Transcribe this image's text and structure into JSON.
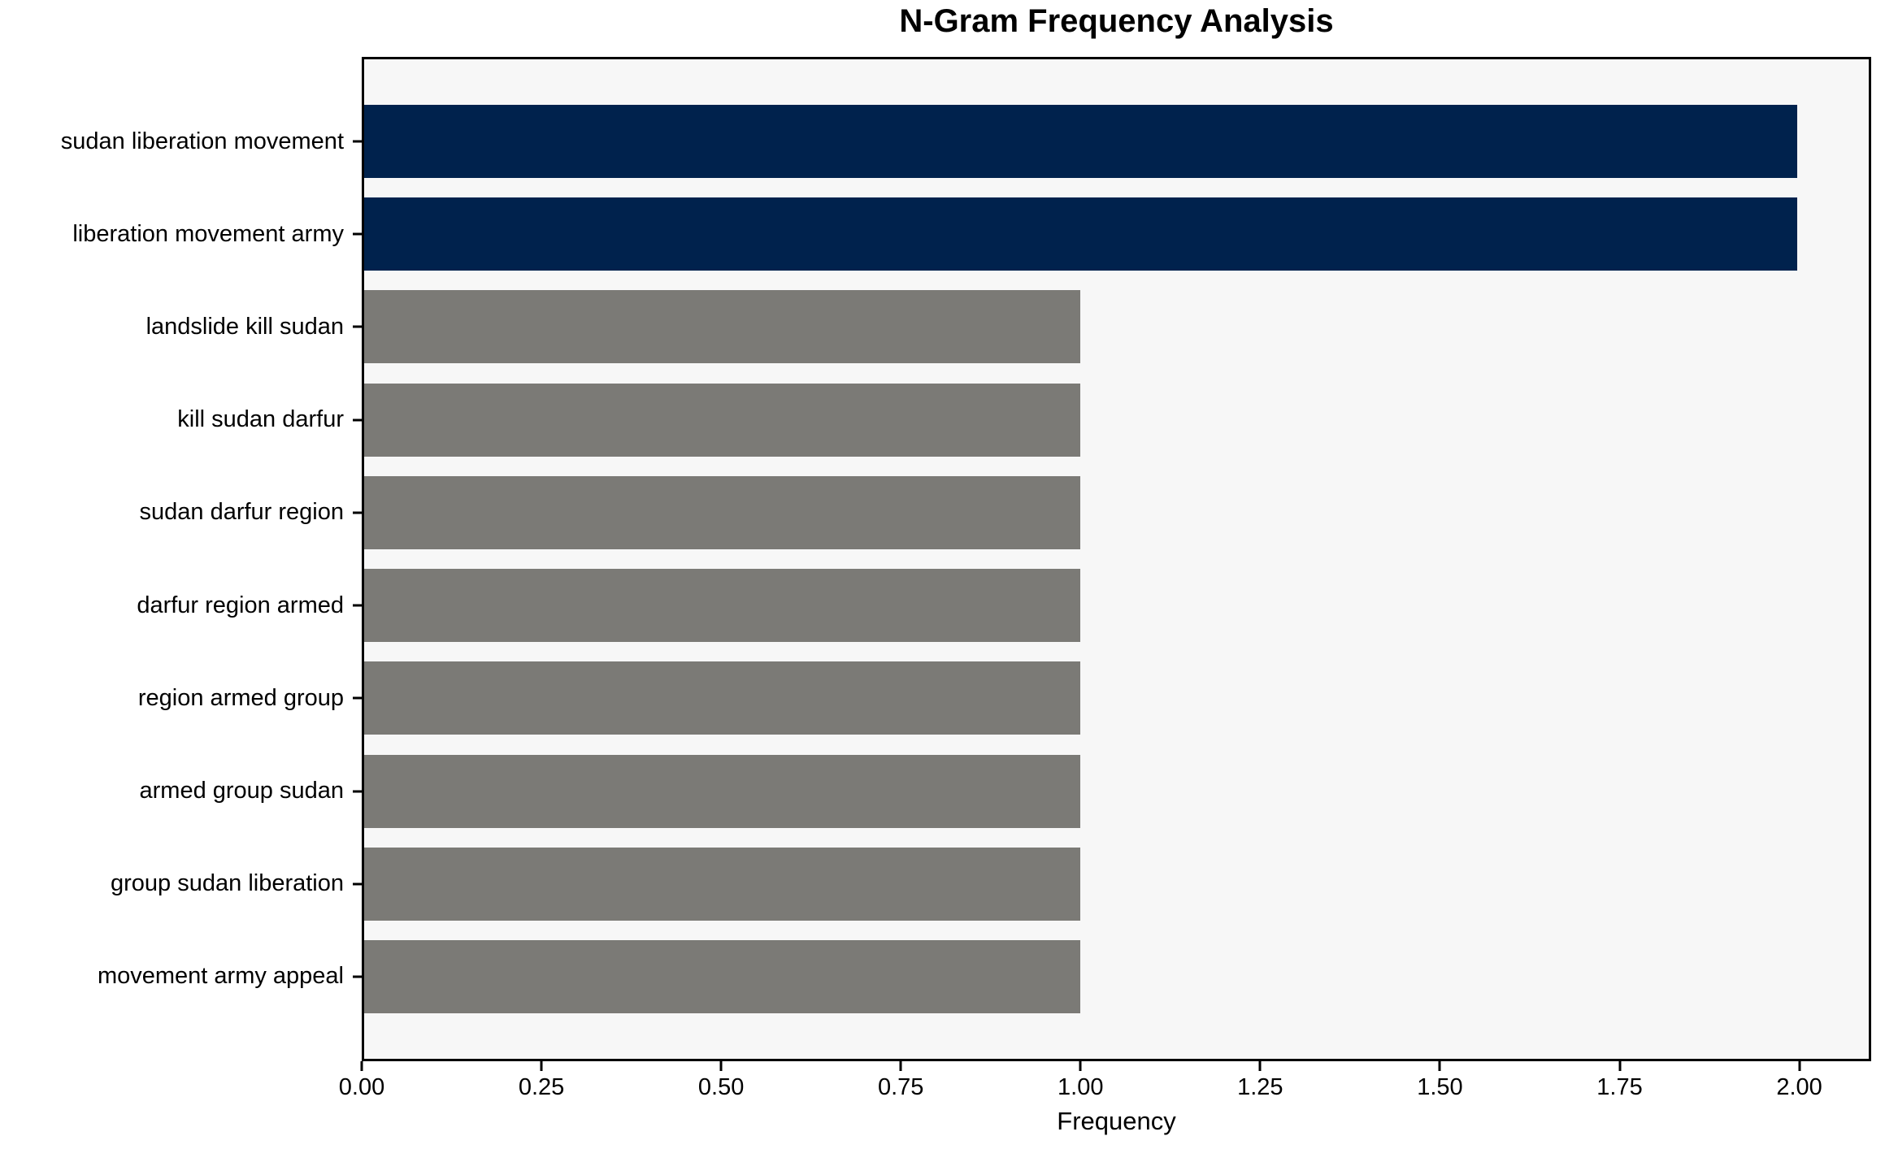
{
  "chart_data": {
    "type": "bar",
    "orientation": "horizontal",
    "title": "N-Gram Frequency Analysis",
    "xlabel": "Frequency",
    "ylabel": "",
    "categories": [
      "sudan liberation movement",
      "liberation movement army",
      "landslide kill sudan",
      "kill sudan darfur",
      "sudan darfur region",
      "darfur region armed",
      "region armed group",
      "armed group sudan",
      "group sudan liberation",
      "movement army appeal"
    ],
    "values": [
      2,
      2,
      1,
      1,
      1,
      1,
      1,
      1,
      1,
      1
    ],
    "bar_colors": [
      "#00224d",
      "#00224d",
      "#7b7a76",
      "#7b7a76",
      "#7b7a76",
      "#7b7a76",
      "#7b7a76",
      "#7b7a76",
      "#7b7a76",
      "#7b7a76"
    ],
    "xlim": [
      0,
      2.1
    ],
    "xtick_values": [
      0,
      0.25,
      0.5,
      0.75,
      1.0,
      1.25,
      1.5,
      1.75,
      2.0
    ],
    "xtick_labels": [
      "0.00",
      "0.25",
      "0.50",
      "0.75",
      "1.00",
      "1.25",
      "1.50",
      "1.75",
      "2.00"
    ],
    "grid": false,
    "legend": "none",
    "colors": {
      "highlight_bar": "#00224d",
      "default_bar": "#7b7a76",
      "plot_background": "#f7f7f7",
      "figure_background": "#ffffff",
      "axis_line": "#000000",
      "text": "#000000"
    }
  }
}
